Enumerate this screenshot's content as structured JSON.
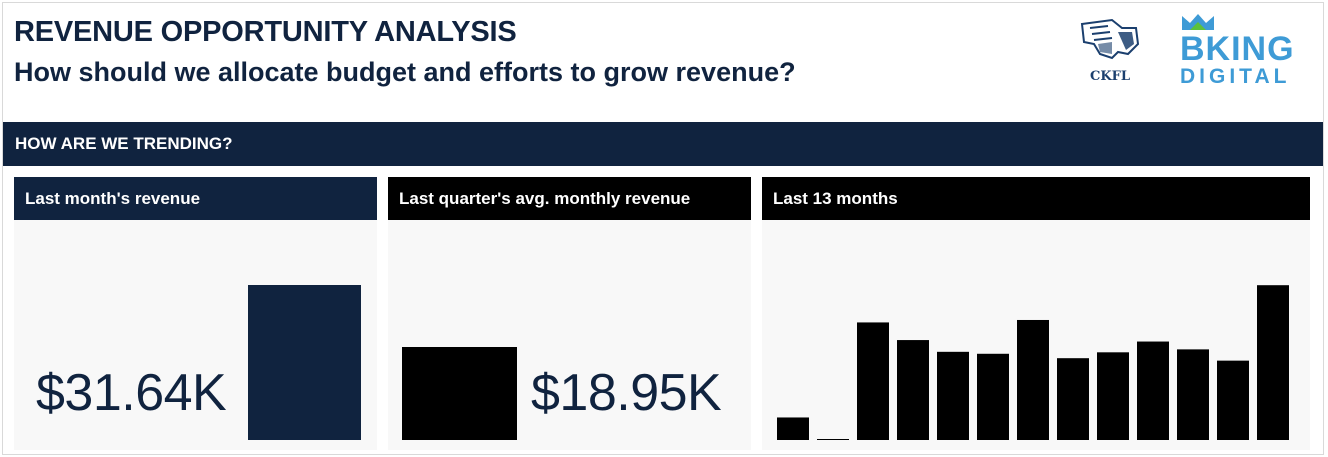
{
  "header": {
    "title": "REVENUE OPPORTUNITY ANALYSIS",
    "subtitle": "How should we allocate budget and efforts to grow revenue?"
  },
  "logos": {
    "ckfl_text": "CKFL",
    "bking_word": "BKING",
    "bking_digital": "DIGITAL"
  },
  "section": {
    "title": "HOW ARE WE TRENDING?"
  },
  "cards": {
    "last_month": {
      "title": "Last month's revenue",
      "value": "$31.64K"
    },
    "last_quarter": {
      "title": "Last quarter's avg. monthly revenue",
      "value": "$18.95K"
    },
    "last_13": {
      "title": "Last 13 months"
    }
  },
  "colors": {
    "navy": "#10233f",
    "black": "#000000",
    "card_bg": "#f8f8f8",
    "logo_blue": "#3e9bd6",
    "logo_green": "#5cc13c"
  },
  "chart_data": {
    "type": "bar",
    "title": "Last 13 months",
    "categories": [
      "",
      "",
      "",
      "",
      "",
      "",
      "",
      "",
      "",
      "",
      "",
      "",
      ""
    ],
    "values": [
      4.6,
      0.2,
      24.0,
      20.4,
      18.0,
      17.6,
      24.5,
      16.7,
      17.9,
      20.1,
      18.5,
      16.2,
      31.6
    ],
    "ylim": [
      0,
      31.64
    ],
    "grid": false,
    "legend": "none"
  }
}
